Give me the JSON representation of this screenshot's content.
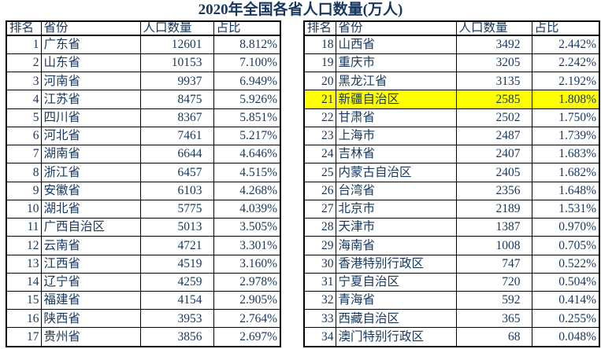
{
  "title": "2020年全国各省人口数量(万人)",
  "colors": {
    "text": "#17375E",
    "border": "#000000",
    "highlight": "#FFFF00",
    "background": "#FFFFFF"
  },
  "chart_data": {
    "type": "table",
    "title": "2020年全国各省人口数量(万人)",
    "columns": [
      "排名",
      "省份",
      "人口数量",
      "占比"
    ],
    "highlighted_rank": 21,
    "layout": "two side-by-side tables: ranks 1-17 left, ranks 18-34 right",
    "rows": [
      [
        1,
        "广东省",
        12601,
        "8.812%"
      ],
      [
        2,
        "山东省",
        10153,
        "7.100%"
      ],
      [
        3,
        "河南省",
        9937,
        "6.949%"
      ],
      [
        4,
        "江苏省",
        8475,
        "5.926%"
      ],
      [
        5,
        "四川省",
        8367,
        "5.851%"
      ],
      [
        6,
        "河北省",
        7461,
        "5.217%"
      ],
      [
        7,
        "湖南省",
        6644,
        "4.646%"
      ],
      [
        8,
        "浙江省",
        6457,
        "4.515%"
      ],
      [
        9,
        "安徽省",
        6103,
        "4.268%"
      ],
      [
        10,
        "湖北省",
        5775,
        "4.039%"
      ],
      [
        11,
        "广西自治区",
        5013,
        "3.505%"
      ],
      [
        12,
        "云南省",
        4721,
        "3.301%"
      ],
      [
        13,
        "江西省",
        4519,
        "3.160%"
      ],
      [
        14,
        "辽宁省",
        4259,
        "2.978%"
      ],
      [
        15,
        "福建省",
        4154,
        "2.905%"
      ],
      [
        16,
        "陕西省",
        3953,
        "2.764%"
      ],
      [
        17,
        "贵州省",
        3856,
        "2.697%"
      ],
      [
        18,
        "山西省",
        3492,
        "2.442%"
      ],
      [
        19,
        "重庆市",
        3205,
        "2.242%"
      ],
      [
        20,
        "黑龙江省",
        3135,
        "2.192%"
      ],
      [
        21,
        "新疆自治区",
        2585,
        "1.808%"
      ],
      [
        22,
        "甘肃省",
        2502,
        "1.750%"
      ],
      [
        23,
        "上海市",
        2487,
        "1.739%"
      ],
      [
        24,
        "吉林省",
        2407,
        "1.683%"
      ],
      [
        25,
        "内蒙古自治区",
        2405,
        "1.682%"
      ],
      [
        26,
        "台湾省",
        2356,
        "1.648%"
      ],
      [
        27,
        "北京市",
        2189,
        "1.531%"
      ],
      [
        28,
        "天津市",
        1387,
        "0.970%"
      ],
      [
        29,
        "海南省",
        1008,
        "0.705%"
      ],
      [
        30,
        "香港特别行政区",
        747,
        "0.522%"
      ],
      [
        31,
        "宁夏自治区",
        720,
        "0.504%"
      ],
      [
        32,
        "青海省",
        592,
        "0.414%"
      ],
      [
        33,
        "西藏自治区",
        365,
        "0.255%"
      ],
      [
        34,
        "澳门特别行政区",
        68,
        "0.048%"
      ]
    ]
  }
}
